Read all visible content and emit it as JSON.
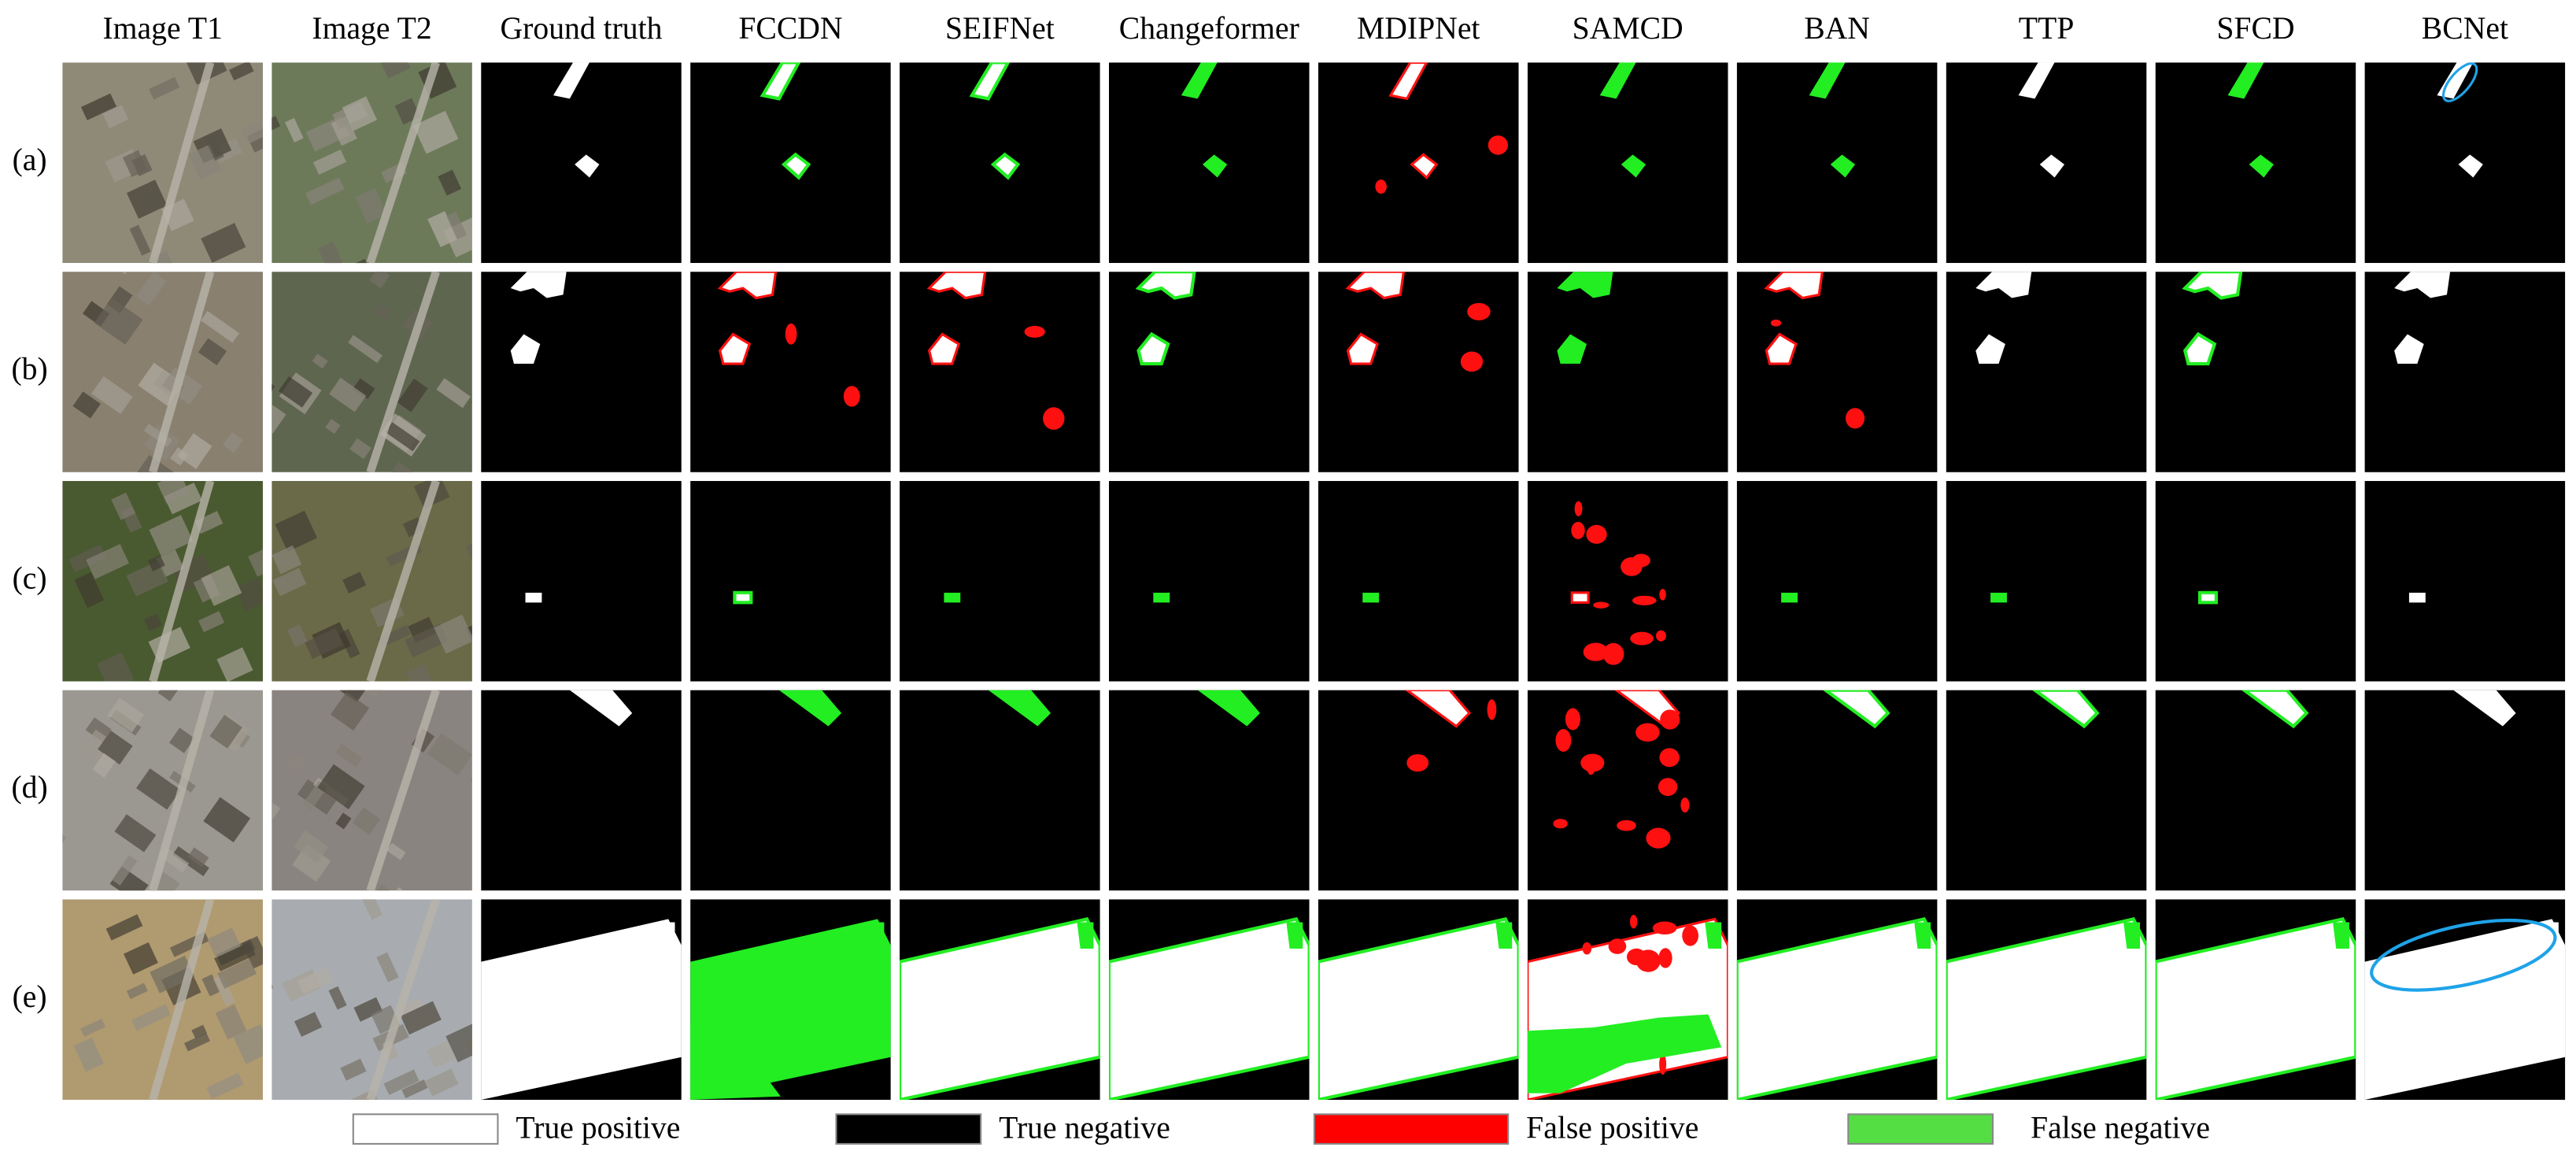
{
  "columns": [
    "Image T1",
    "Image T2",
    "Ground truth",
    "FCCDN",
    "SEIFNet",
    "Changeformer",
    "MDIPNet",
    "SAMCD",
    "BAN",
    "TTP",
    "SFCD",
    "BCNet"
  ],
  "rows": [
    "(a)",
    "(b)",
    "(c)",
    "(d)",
    "(e)"
  ],
  "legend": [
    {
      "label": "True positive",
      "color": "#ffffff"
    },
    {
      "label": "True negative",
      "color": "#000000"
    },
    {
      "label": "False positive",
      "color": "#ff0000"
    },
    {
      "label": "False negative",
      "color": "#55dd44"
    }
  ]
}
